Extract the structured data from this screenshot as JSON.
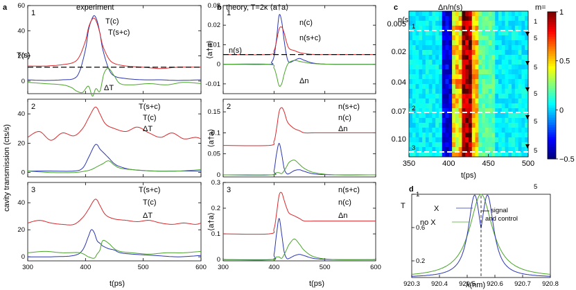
{
  "colors": {
    "red": "#d8282c",
    "blue": "#2a35b0",
    "green": "#4aa52a",
    "black": "#000000"
  },
  "panel_letters": {
    "a": "a",
    "b": "b",
    "c": "c",
    "d": "d"
  },
  "titles": {
    "a": "experiment",
    "b": "theory, T=2κ ⟨a†a⟩",
    "c": "Δn/n(s)"
  },
  "axis_labels": {
    "a_y": "cavity transmission (cts/s)",
    "a_x": "t(ps)",
    "b_x": "t(ps)",
    "b_y": "⟨a†a⟩",
    "c_x": "t(ps)",
    "c_ns": "n(s)=",
    "c_m": "m=",
    "d_x": "λ(nm)",
    "d_y": "T"
  },
  "subplot_numbers": [
    "1",
    "2",
    "3"
  ],
  "chart_data": [
    {
      "type": "line",
      "id": "a1",
      "xlim": [
        300,
        600
      ],
      "ylim": [
        -10,
        60
      ],
      "yticks": [
        0,
        20,
        40,
        60
      ],
      "xticks": [
        300,
        400,
        500,
        600
      ],
      "series": [
        {
          "name": "T(c)",
          "color": "blue",
          "x": [
            300,
            330,
            360,
            380,
            390,
            400,
            405,
            410,
            415,
            420,
            425,
            430,
            440,
            450,
            470,
            500,
            530,
            560,
            600
          ],
          "y": [
            1,
            0.5,
            1,
            2,
            8,
            25,
            40,
            48,
            52,
            48,
            38,
            25,
            10,
            4,
            2,
            1,
            1,
            0.5,
            1
          ]
        },
        {
          "name": "T(s+c)",
          "color": "red",
          "x": [
            300,
            330,
            360,
            380,
            390,
            400,
            405,
            410,
            415,
            420,
            425,
            430,
            440,
            450,
            470,
            500,
            530,
            560,
            600
          ],
          "y": [
            12,
            12,
            13,
            15,
            20,
            32,
            42,
            48,
            50,
            46,
            38,
            28,
            18,
            14,
            12,
            11,
            10,
            11,
            11
          ]
        },
        {
          "name": "ΔT",
          "color": "green",
          "x": [
            300,
            330,
            360,
            375,
            385,
            395,
            405,
            412,
            418,
            425,
            432,
            440,
            450,
            460,
            480,
            510,
            540,
            570,
            600
          ],
          "y": [
            -1,
            -2,
            -3,
            -5,
            -8,
            -9,
            -4,
            -12,
            -6,
            -8,
            6,
            10,
            4,
            -2,
            -3,
            -2,
            -3,
            -1,
            -2
          ]
        },
        {
          "name": "T(s)",
          "color": "black",
          "dashed": true,
          "x": [
            300,
            600
          ],
          "y": [
            11,
            11
          ]
        }
      ],
      "labels": [
        "T(c)",
        "T(s+c)",
        "T(s)",
        "ΔT"
      ]
    },
    {
      "type": "line",
      "id": "a2",
      "xlim": [
        300,
        600
      ],
      "ylim": [
        -3,
        50
      ],
      "yticks": [
        0,
        20,
        40
      ],
      "xticks": [
        300,
        400,
        500,
        600
      ],
      "series": [
        {
          "name": "T(s+c)",
          "color": "red",
          "x": [
            300,
            320,
            340,
            360,
            380,
            395,
            405,
            415,
            420,
            425,
            435,
            450,
            470,
            490,
            510,
            530,
            550,
            570,
            590,
            600
          ],
          "y": [
            24,
            28,
            22,
            27,
            25,
            30,
            37,
            44,
            44,
            40,
            33,
            30,
            28,
            31,
            27,
            24,
            27,
            23,
            24,
            23
          ]
        },
        {
          "name": "T(c)",
          "color": "blue",
          "x": [
            300,
            340,
            380,
            395,
            405,
            415,
            420,
            425,
            430,
            440,
            450,
            460,
            480,
            520,
            560,
            600
          ],
          "y": [
            1,
            1,
            1,
            3,
            10,
            18,
            19,
            16,
            14,
            10,
            6,
            4,
            2,
            1,
            1,
            1
          ]
        },
        {
          "name": "ΔT",
          "color": "green",
          "x": [
            300,
            340,
            380,
            400,
            410,
            420,
            430,
            440,
            450,
            460,
            480,
            520,
            560,
            600
          ],
          "y": [
            1,
            0,
            0,
            1,
            2,
            4,
            6,
            8,
            5,
            3,
            2,
            1,
            1,
            2
          ]
        }
      ],
      "labels": [
        "T(s+c)",
        "T(c)",
        "ΔT"
      ]
    },
    {
      "type": "line",
      "id": "a3",
      "xlim": [
        300,
        600
      ],
      "ylim": [
        -3,
        55
      ],
      "yticks": [
        0,
        20,
        40
      ],
      "xticks": [
        300,
        400,
        500,
        600
      ],
      "series": [
        {
          "name": "T(s+c)",
          "color": "red",
          "x": [
            300,
            320,
            340,
            360,
            380,
            395,
            405,
            415,
            420,
            425,
            435,
            450,
            470,
            490,
            510,
            530,
            550,
            570,
            590,
            600
          ],
          "y": [
            25,
            27,
            25,
            24,
            24,
            29,
            35,
            42,
            42,
            38,
            31,
            28,
            27,
            26,
            27,
            25,
            24,
            25,
            24,
            25
          ]
        },
        {
          "name": "T(c)",
          "color": "blue",
          "x": [
            300,
            340,
            380,
            395,
            405,
            410,
            415,
            420,
            425,
            430,
            440,
            450,
            460,
            480,
            520,
            560,
            600
          ],
          "y": [
            0,
            0,
            1,
            5,
            15,
            20,
            18,
            12,
            10,
            8,
            6,
            5,
            3,
            2,
            1,
            0,
            1
          ]
        },
        {
          "name": "ΔT",
          "color": "green",
          "x": [
            300,
            330,
            360,
            390,
            405,
            415,
            420,
            425,
            430,
            440,
            450,
            460,
            480,
            510,
            540,
            570,
            600
          ],
          "y": [
            3,
            4,
            3,
            3,
            0,
            -1,
            2,
            5,
            12,
            10,
            6,
            4,
            3,
            2,
            3,
            3,
            4
          ]
        }
      ],
      "labels": [
        "T(s+c)",
        "T(c)",
        "ΔT"
      ]
    },
    {
      "type": "line",
      "id": "b1",
      "xlim": [
        300,
        600
      ],
      "ylim": [
        -0.015,
        0.03
      ],
      "yticks": [
        -0.01,
        0,
        0.01,
        0.02,
        0.03
      ],
      "xticks": [
        300,
        400,
        500,
        600
      ],
      "series": [
        {
          "name": "n(c)",
          "color": "blue",
          "x": [
            300,
            390,
            395,
            400,
            405,
            410,
            415,
            420,
            425,
            430,
            440,
            450,
            460,
            480,
            520,
            600
          ],
          "y": [
            0,
            0,
            0.001,
            0.004,
            0.013,
            0.025,
            0.022,
            0.012,
            0.004,
            0.001,
            0.002,
            0.003,
            0.002,
            0.0005,
            0,
            0
          ]
        },
        {
          "name": "n(s+c)",
          "color": "red",
          "x": [
            300,
            390,
            400,
            405,
            410,
            415,
            420,
            425,
            430,
            440,
            450,
            460,
            480,
            520,
            600
          ],
          "y": [
            0.005,
            0.005,
            0.007,
            0.012,
            0.018,
            0.019,
            0.016,
            0.011,
            0.008,
            0.007,
            0.006,
            0.0055,
            0.005,
            0.005,
            0.005
          ]
        },
        {
          "name": "Δn",
          "color": "green",
          "x": [
            300,
            390,
            400,
            405,
            410,
            415,
            420,
            425,
            430,
            440,
            450,
            460,
            480,
            520,
            600
          ],
          "y": [
            0,
            0,
            -0.002,
            -0.006,
            -0.011,
            -0.01,
            -0.005,
            -0.001,
            0.001,
            0.002,
            0.0015,
            0.001,
            0.0003,
            0,
            0
          ]
        },
        {
          "name": "n(s)",
          "color": "black",
          "dashed": true,
          "x": [
            300,
            600
          ],
          "y": [
            0.005,
            0.005
          ]
        }
      ],
      "labels": [
        "n(c)",
        "n(s+c)",
        "n(s)",
        "Δn"
      ]
    },
    {
      "type": "line",
      "id": "b2",
      "xlim": [
        300,
        600
      ],
      "ylim": [
        -0.005,
        0.18
      ],
      "yticks": [
        0,
        0.05,
        0.1,
        0.15
      ],
      "xticks": [
        300,
        400,
        500,
        600
      ],
      "series": [
        {
          "name": "n(s+c)",
          "color": "red",
          "x": [
            300,
            390,
            400,
            405,
            410,
            415,
            420,
            425,
            430,
            440,
            450,
            460,
            480,
            520,
            600
          ],
          "y": [
            0.07,
            0.07,
            0.08,
            0.11,
            0.15,
            0.16,
            0.15,
            0.13,
            0.12,
            0.11,
            0.105,
            0.1,
            0.1,
            0.1,
            0.1
          ]
        },
        {
          "name": "n(c)",
          "color": "blue",
          "x": [
            300,
            395,
            400,
            405,
            410,
            415,
            420,
            425,
            430,
            440,
            450,
            460,
            480,
            520,
            600
          ],
          "y": [
            0,
            0,
            0.01,
            0.05,
            0.075,
            0.05,
            0.015,
            0.003,
            0.003,
            0.01,
            0.012,
            0.008,
            0.002,
            0,
            0
          ]
        },
        {
          "name": "Δn",
          "color": "green",
          "x": [
            300,
            395,
            400,
            405,
            410,
            415,
            420,
            425,
            430,
            440,
            450,
            460,
            480,
            520,
            600
          ],
          "y": [
            0,
            0,
            0.002,
            0.005,
            0.005,
            0.003,
            0.01,
            0.02,
            0.03,
            0.035,
            0.025,
            0.015,
            0.005,
            0,
            0
          ]
        }
      ],
      "labels": [
        "n(s+c)",
        "n(c)",
        "Δn"
      ]
    },
    {
      "type": "line",
      "id": "b3",
      "xlim": [
        300,
        600
      ],
      "ylim": [
        -0.005,
        0.3
      ],
      "yticks": [
        0,
        0.1,
        0.2,
        0.3
      ],
      "xticks": [
        300,
        400,
        500,
        600
      ],
      "series": [
        {
          "name": "n(s+c)",
          "color": "red",
          "x": [
            300,
            390,
            400,
            405,
            410,
            415,
            420,
            425,
            430,
            440,
            450,
            460,
            480,
            520,
            600
          ],
          "y": [
            0.1,
            0.1,
            0.12,
            0.18,
            0.25,
            0.26,
            0.23,
            0.2,
            0.18,
            0.17,
            0.16,
            0.15,
            0.15,
            0.15,
            0.15
          ]
        },
        {
          "name": "n(c)",
          "color": "blue",
          "x": [
            300,
            395,
            400,
            405,
            410,
            415,
            420,
            425,
            430,
            440,
            450,
            460,
            480,
            520,
            600
          ],
          "y": [
            0,
            0,
            0.02,
            0.1,
            0.16,
            0.1,
            0.03,
            0.005,
            0.005,
            0.015,
            0.02,
            0.015,
            0.004,
            0,
            0
          ]
        },
        {
          "name": "Δn",
          "color": "green",
          "x": [
            300,
            395,
            400,
            405,
            410,
            415,
            420,
            425,
            430,
            440,
            450,
            460,
            480,
            520,
            600
          ],
          "y": [
            0,
            0,
            0.003,
            0.01,
            0.01,
            0.005,
            0.02,
            0.04,
            0.06,
            0.08,
            0.06,
            0.035,
            0.01,
            0,
            0
          ]
        }
      ],
      "labels": [
        "n(s+c)",
        "n(c)",
        "Δn"
      ]
    },
    {
      "type": "heatmap",
      "id": "c",
      "xlim": [
        350,
        500
      ],
      "xticks": [
        350,
        400,
        450,
        500
      ],
      "ns_labels": [
        "0.005",
        "0.02",
        "0.04",
        "0.07",
        "0.10"
      ],
      "m_labels": [
        "1",
        "5",
        "5",
        "5",
        "5",
        "5"
      ],
      "m_below": "5",
      "dashed_rows": [
        "1",
        "2",
        "3"
      ],
      "colorbar": {
        "min": -0.5,
        "max": 1,
        "ticks": [
          -0.5,
          0,
          0.5,
          1
        ],
        "labels": [
          "−0.5",
          "0",
          "0.5",
          "1"
        ]
      }
    },
    {
      "type": "line",
      "id": "d",
      "xlim": [
        920.3,
        920.8
      ],
      "ylim": [
        0,
        1
      ],
      "xticks": [
        920.3,
        920.4,
        920.5,
        920.6,
        920.7,
        920.8
      ],
      "xticklabels": [
        "920.3",
        "920.4",
        "920.5",
        "920.6",
        "920.7",
        "920.8"
      ],
      "yticks": [
        0.2,
        0.6,
        1
      ],
      "yticklabels": [
        "0.2",
        "0.6",
        "1"
      ],
      "series": [
        {
          "name": "X",
          "color": "blue"
        },
        {
          "name": "no X",
          "color": "green"
        }
      ],
      "labels": [
        "X",
        "no X",
        "signal",
        "and control"
      ]
    }
  ]
}
